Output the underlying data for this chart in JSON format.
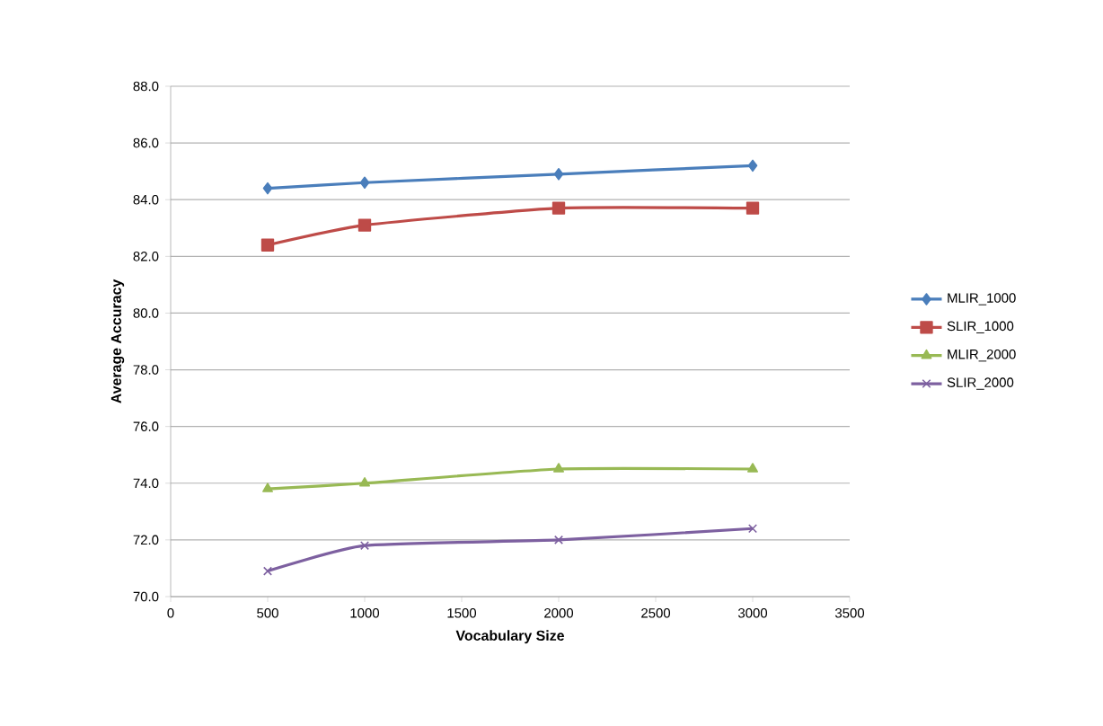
{
  "chart_data": {
    "type": "line",
    "xlabel": "Vocabulary Size",
    "ylabel": "Average Accuracy",
    "x": [
      500,
      1000,
      2000,
      3000
    ],
    "series": [
      {
        "name": "MLIR_1000",
        "color": "#4a7ebb",
        "marker": "diamond",
        "values": [
          84.4,
          84.6,
          84.9,
          85.2
        ]
      },
      {
        "name": "SLIR_1000",
        "color": "#be4b48",
        "marker": "square",
        "values": [
          82.4,
          83.1,
          83.7,
          83.7
        ]
      },
      {
        "name": "MLIR_2000",
        "color": "#98b954",
        "marker": "triangle",
        "values": [
          73.8,
          74.0,
          74.5,
          74.5
        ]
      },
      {
        "name": "SLIR_2000",
        "color": "#7d60a0",
        "marker": "cross",
        "values": [
          70.9,
          71.8,
          72.0,
          72.4
        ]
      }
    ],
    "xlim": [
      0,
      3500
    ],
    "xticks": [
      0,
      500,
      1000,
      1500,
      2000,
      2500,
      3000,
      3500
    ],
    "ylim": [
      70,
      88
    ],
    "yticks": [
      {
        "value": 70,
        "label": "70.0"
      },
      {
        "value": 72,
        "label": "72.0"
      },
      {
        "value": 74,
        "label": "74.0"
      },
      {
        "value": 76,
        "label": "76.0"
      },
      {
        "value": 78,
        "label": "78.0"
      },
      {
        "value": 80,
        "label": "80.0"
      },
      {
        "value": 82,
        "label": "82.0"
      },
      {
        "value": 84,
        "label": "84.0"
      },
      {
        "value": 86,
        "label": "86.0"
      },
      {
        "value": 88,
        "label": "88.0"
      }
    ],
    "grid": "y",
    "legend": "right",
    "line_style": "solid"
  }
}
